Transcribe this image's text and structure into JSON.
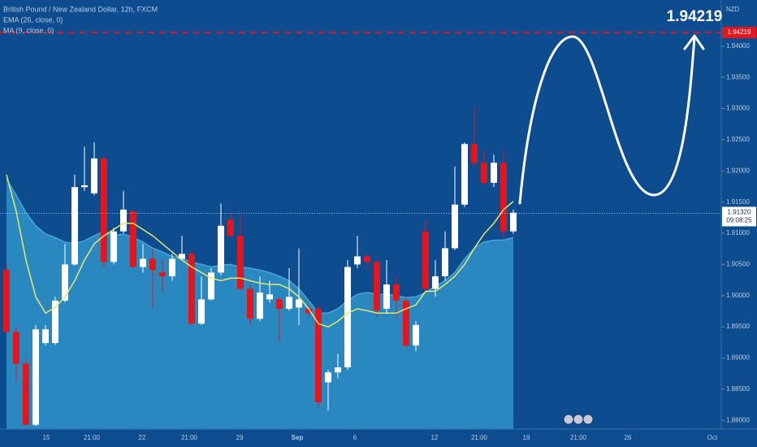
{
  "chart_data": {
    "type": "candlestick",
    "title": "British Pound / New Zealand Dollar, 12h, FXCM",
    "indicators": [
      "EMA (26, close, 0)",
      "MA (9, close, 0)"
    ],
    "currency": "NZD",
    "ylim": [
      1.8786,
      1.9474
    ],
    "yticks": [
      {
        "value": 1.88,
        "label": "1.88000"
      },
      {
        "value": 1.885,
        "label": "1.88500"
      },
      {
        "value": 1.89,
        "label": "1.89000"
      },
      {
        "value": 1.895,
        "label": "1.89500"
      },
      {
        "value": 1.9,
        "label": "1.90000"
      },
      {
        "value": 1.905,
        "label": "1.90500"
      },
      {
        "value": 1.91,
        "label": "1.91000"
      },
      {
        "value": 1.915,
        "label": "1.91500"
      },
      {
        "value": 1.92,
        "label": "1.92000"
      },
      {
        "value": 1.925,
        "label": "1.92500"
      },
      {
        "value": 1.93,
        "label": "1.93000"
      },
      {
        "value": 1.935,
        "label": "1.93500"
      },
      {
        "value": 1.94,
        "label": "1.94000"
      }
    ],
    "x_labels": [
      "15",
      "21:00",
      "22",
      "21:00",
      "29",
      "Sep",
      "6",
      "12",
      "21:00",
      "19",
      "21:00",
      "26",
      "Oct"
    ],
    "up_color": "#ffffff",
    "down_color": "#e3161e",
    "open": [
      1.9041,
      1.8942,
      1.8891,
      1.8793,
      1.8924,
      1.8924,
      1.8992,
      1.905,
      1.9174,
      1.9164,
      1.922,
      1.9054,
      1.9103,
      1.9135,
      1.9046,
      1.9059,
      1.9037,
      1.9031,
      1.9059,
      1.9067,
      1.8955,
      1.8994,
      1.9037,
      1.9122,
      1.9096,
      1.9011,
      1.8963,
      1.8994,
      1.8994,
      1.8979,
      1.8981,
      1.8979,
      1.8979,
      1.8861,
      1.8877,
      1.8885,
      1.905,
      1.9063,
      1.9054,
      1.8979,
      1.9018,
      1.8992,
      1.892,
      1.9103,
      1.9011,
      1.9031,
      1.9076,
      1.9146,
      1.9243,
      1.9213,
      1.9181,
      1.9213,
      1.9103
    ],
    "high": [
      1.905,
      1.895,
      1.89,
      1.8953,
      1.8953,
      1.8998,
      1.9083,
      1.9194,
      1.9239,
      1.9246,
      1.9224,
      1.9109,
      1.9168,
      1.9138,
      1.9083,
      1.9076,
      1.9057,
      1.9067,
      1.9096,
      1.9073,
      1.9031,
      1.9044,
      1.9148,
      1.9133,
      1.9129,
      1.9018,
      1.9031,
      1.9024,
      1.8998,
      1.9044,
      1.9076,
      1.8985,
      1.8985,
      1.8881,
      1.8907,
      1.9057,
      1.9096,
      1.9067,
      1.9059,
      1.9057,
      1.9031,
      1.8998,
      1.8959,
      1.9122,
      1.9057,
      1.9103,
      1.9207,
      1.9246,
      1.9302,
      1.9233,
      1.9226,
      1.9233,
      1.9138
    ],
    "low": [
      1.894,
      1.8861,
      1.8793,
      1.8791,
      1.892,
      1.8921,
      1.8989,
      1.9048,
      1.9168,
      1.9161,
      1.9044,
      1.905,
      1.91,
      1.9044,
      1.9037,
      1.8979,
      1.9007,
      1.9024,
      1.9057,
      1.8953,
      1.8953,
      1.8992,
      1.9033,
      1.9093,
      1.9007,
      1.8953,
      1.8959,
      1.8989,
      1.8926,
      1.8976,
      1.8953,
      1.8966,
      1.8822,
      1.8816,
      1.8868,
      1.8881,
      1.9044,
      1.9044,
      1.8966,
      1.8972,
      1.8963,
      1.8916,
      1.8911,
      1.9005,
      1.8998,
      1.9024,
      1.9073,
      1.9142,
      1.9207,
      1.9177,
      1.9174,
      1.9093,
      1.9099
    ],
    "close": [
      1.8942,
      1.8891,
      1.8793,
      1.8946,
      1.8946,
      1.8992,
      1.905,
      1.9174,
      1.9177,
      1.922,
      1.9054,
      1.9103,
      1.9138,
      1.9046,
      1.9059,
      1.9041,
      1.9031,
      1.9059,
      1.9067,
      1.8955,
      1.8994,
      1.9037,
      1.9112,
      1.9096,
      1.9011,
      1.8963,
      1.9005,
      1.9002,
      1.8979,
      1.8998,
      1.8994,
      1.8972,
      1.8829,
      1.8877,
      1.8885,
      1.9046,
      1.9063,
      1.9054,
      1.8976,
      1.9018,
      1.8992,
      1.892,
      1.8953,
      1.9011,
      1.9031,
      1.9076,
      1.9146,
      1.9243,
      1.9213,
      1.9181,
      1.9213,
      1.9103,
      1.9133
    ],
    "ema": {
      "color": "#2a88c0",
      "values": [
        1.9187,
        1.9161,
        1.9133,
        1.9112,
        1.9099,
        1.9093,
        1.9086,
        1.9083,
        1.9088,
        1.9096,
        1.9103,
        1.9096,
        1.9099,
        1.9093,
        1.9086,
        1.9076,
        1.907,
        1.9063,
        1.9059,
        1.9054,
        1.905,
        1.9046,
        1.9049,
        1.905,
        1.9046,
        1.9044,
        1.9041,
        1.9037,
        1.9031,
        1.9024,
        1.9011,
        1.8992,
        1.8972,
        1.8972,
        1.8979,
        1.8992,
        1.9002,
        1.9005,
        1.9002,
        1.9002,
        1.9,
        1.8997,
        1.8998,
        1.9005,
        1.9015,
        1.9024,
        1.9037,
        1.9059,
        1.9076,
        1.9086,
        1.9089,
        1.9089,
        1.9093
      ]
    },
    "ma": {
      "color": "#e6e86a",
      "values": [
        1.9194,
        1.9135,
        1.9057,
        1.8998,
        1.8972,
        1.8981,
        1.8998,
        1.9024,
        1.9057,
        1.9083,
        1.9096,
        1.9106,
        1.9116,
        1.9116,
        1.9106,
        1.9096,
        1.9083,
        1.907,
        1.9057,
        1.9046,
        1.9037,
        1.9028,
        1.9024,
        1.9028,
        1.9028,
        1.9024,
        1.902,
        1.9018,
        1.9018,
        1.9011,
        1.8998,
        1.8979,
        1.8955,
        1.895,
        1.8959,
        1.8972,
        1.8979,
        1.8976,
        1.8972,
        1.8972,
        1.8972,
        1.8979,
        1.8985,
        1.9007,
        1.9007,
        1.9018,
        1.9031,
        1.905,
        1.9076,
        1.9099,
        1.9116,
        1.9138,
        1.9151
      ]
    },
    "current_price": {
      "value": 1.9132,
      "label": "1.91320"
    },
    "countdown": "09:08:25",
    "target": 1.94219
  }
}
